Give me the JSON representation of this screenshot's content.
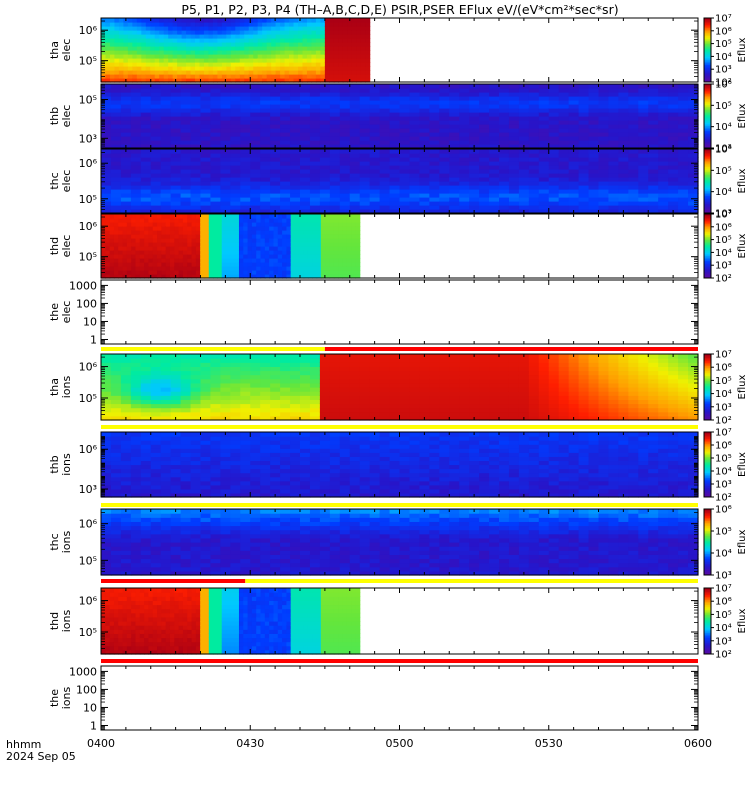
{
  "title": "P5, P1, P2, P3, P4 (TH–A,B,C,D,E) PSIR,PSER EFlux eV/(eV*cm²*sec*sr)",
  "footer": {
    "time_label": "hhmm",
    "date_label": "2024 Sep 05"
  },
  "colors": {
    "quality_yellow": "#ffff00",
    "quality_red": "#ff0000",
    "empty_panel": "#ffffff",
    "floor": "#5a0aa0"
  },
  "chart_data": {
    "type": "heatmap",
    "x_axis": {
      "label": "hhmm",
      "range": [
        "0400",
        "0600"
      ],
      "range_minutes": [
        0,
        120
      ],
      "tick_labels": [
        "0400",
        "0430",
        "0500",
        "0530",
        "0600"
      ],
      "tick_minutes": [
        0,
        30,
        60,
        90,
        120
      ]
    },
    "panels": [
      {
        "id": "tha-elec",
        "label": [
          "tha",
          "elec"
        ],
        "kind": "spectrogram",
        "ytick_labels": [
          "10⁶",
          "10⁵"
        ],
        "ytick_exp": [
          6,
          5
        ],
        "ylog": true,
        "ylim_exp": [
          4.3,
          6.4
        ],
        "data_end": 54,
        "colorbar": {
          "label": "Eflux",
          "exp": [
            2,
            7
          ],
          "tick_labels": [
            "10⁷",
            "10⁶",
            "10⁵",
            "10⁴",
            "10³",
            "10²"
          ]
        },
        "quality": null
      },
      {
        "id": "thb-elec",
        "label": [
          "thb",
          "elec"
        ],
        "kind": "spectrogram",
        "ytick_labels": [
          "10⁵",
          "10³"
        ],
        "ytick_exp": [
          5,
          3
        ],
        "ylog": true,
        "ylim_exp": [
          2.5,
          5.8
        ],
        "data_end": 120,
        "colorbar": {
          "label": "Eflux",
          "exp": [
            2.5,
            6.5
          ],
          "tick_labels": [
            "10⁶",
            "10⁵",
            "10⁴",
            "10³"
          ]
        },
        "quality": null
      },
      {
        "id": "thc-elec",
        "label": [
          "thc",
          "elec"
        ],
        "kind": "spectrogram",
        "ytick_labels": [
          "10⁶",
          "10⁵"
        ],
        "ytick_exp": [
          6,
          5
        ],
        "ylog": true,
        "ylim_exp": [
          4.6,
          6.4
        ],
        "data_end": 120,
        "colorbar": {
          "label": "Eflux",
          "exp": [
            2.5,
            6.5
          ],
          "tick_labels": [
            "10⁶",
            "10⁵",
            "10⁴",
            "10³"
          ]
        },
        "quality": null
      },
      {
        "id": "thd-elec",
        "label": [
          "thd",
          "elec"
        ],
        "kind": "spectrogram",
        "ytick_labels": [
          "10⁶",
          "10⁵"
        ],
        "ytick_exp": [
          6,
          5
        ],
        "ylog": true,
        "ylim_exp": [
          4.3,
          6.4
        ],
        "data_end": 52,
        "colorbar": {
          "label": "Eflux",
          "exp": [
            2,
            7
          ],
          "tick_labels": [
            "10⁷",
            "10⁶",
            "10⁵",
            "10⁴",
            "10³",
            "10²"
          ]
        },
        "quality": null
      },
      {
        "id": "the-elec",
        "label": [
          "the",
          "elec"
        ],
        "kind": "empty",
        "ytick_labels": [
          "1000",
          "100",
          "10",
          "1"
        ],
        "ytick_exp": [
          3,
          2,
          1,
          0
        ],
        "ylog": true,
        "ylim_exp": [
          -0.25,
          3.3
        ],
        "data_end": 0,
        "colorbar": null,
        "quality": [
          [
            0,
            45,
            "yellow"
          ],
          [
            45,
            120,
            "red"
          ]
        ]
      },
      {
        "id": "tha-ions",
        "label": [
          "tha",
          "ions"
        ],
        "kind": "spectrogram",
        "ytick_labels": [
          "10⁶",
          "10⁵"
        ],
        "ytick_exp": [
          6,
          5
        ],
        "ylog": true,
        "ylim_exp": [
          4.3,
          6.4
        ],
        "data_end": 120,
        "colorbar": {
          "label": "Eflux",
          "exp": [
            2,
            7
          ],
          "tick_labels": [
            "10⁷",
            "10⁶",
            "10⁵",
            "10⁴",
            "10³",
            "10²"
          ]
        },
        "quality": [
          [
            0,
            120,
            "yellow"
          ]
        ]
      },
      {
        "id": "thb-ions",
        "label": [
          "thb",
          "ions"
        ],
        "kind": "spectrogram",
        "ytick_labels": [
          "10⁶",
          "10³"
        ],
        "ytick_exp": [
          6,
          3
        ],
        "ylog": true,
        "ylim_exp": [
          2.4,
          7.3
        ],
        "data_end": 120,
        "colorbar": {
          "label": "Eflux",
          "exp": [
            2,
            7
          ],
          "tick_labels": [
            "10⁷",
            "10⁶",
            "10⁵",
            "10⁴",
            "10³",
            "10²"
          ]
        },
        "quality": [
          [
            0,
            120,
            "yellow"
          ]
        ]
      },
      {
        "id": "thc-ions",
        "label": [
          "thc",
          "ions"
        ],
        "kind": "spectrogram",
        "ytick_labels": [
          "10⁶",
          "10⁵"
        ],
        "ytick_exp": [
          6,
          5
        ],
        "ylog": true,
        "ylim_exp": [
          4.6,
          6.4
        ],
        "data_end": 120,
        "colorbar": {
          "label": "Eflux",
          "exp": [
            2.5,
            6.5
          ],
          "tick_labels": [
            "10⁶",
            "10⁵",
            "10⁴",
            "10³"
          ]
        },
        "quality": [
          [
            0,
            29,
            "red"
          ],
          [
            29,
            120,
            "yellow"
          ]
        ]
      },
      {
        "id": "thd-ions",
        "label": [
          "thd",
          "ions"
        ],
        "kind": "spectrogram",
        "ytick_labels": [
          "10⁶",
          "10⁵"
        ],
        "ytick_exp": [
          6,
          5
        ],
        "ylog": true,
        "ylim_exp": [
          4.3,
          6.4
        ],
        "data_end": 52,
        "colorbar": {
          "label": "Eflux",
          "exp": [
            2,
            7
          ],
          "tick_labels": [
            "10⁷",
            "10⁶",
            "10⁵",
            "10⁴",
            "10³",
            "10²"
          ]
        },
        "quality": [
          [
            0,
            120,
            "red"
          ]
        ]
      },
      {
        "id": "the-ions",
        "label": [
          "the",
          "ions"
        ],
        "kind": "empty",
        "ytick_labels": [
          "1000",
          "100",
          "10",
          "1"
        ],
        "ytick_exp": [
          3,
          2,
          1,
          0
        ],
        "ylog": true,
        "ylim_exp": [
          -0.25,
          3.3
        ],
        "data_end": 0,
        "colorbar": null,
        "quality": null
      }
    ]
  }
}
